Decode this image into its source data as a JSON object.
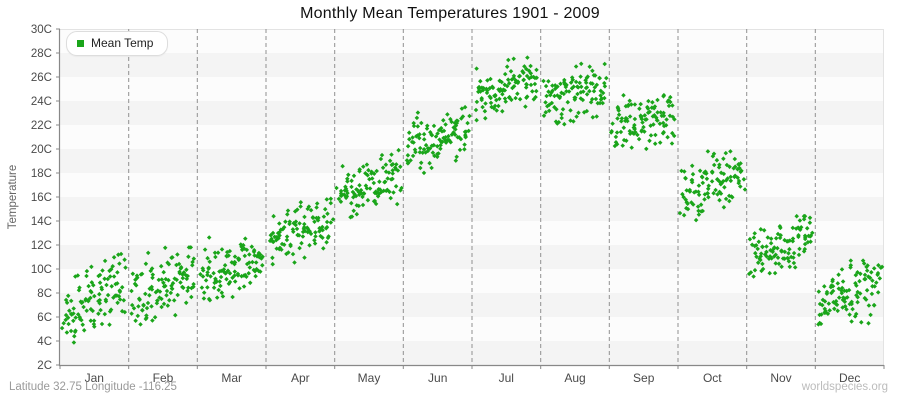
{
  "title": "Monthly Mean Temperatures 1901 - 2009",
  "legend": {
    "label": "Mean Temp"
  },
  "y_axis": {
    "label": "Temperature",
    "min": 2,
    "max": 30,
    "tick_step": 2,
    "tick_labels": [
      "2C",
      "4C",
      "6C",
      "8C",
      "10C",
      "12C",
      "14C",
      "16C",
      "18C",
      "20C",
      "22C",
      "24C",
      "26C",
      "28C",
      "30C"
    ]
  },
  "x_axis": {
    "months": [
      "Jan",
      "Feb",
      "Mar",
      "Apr",
      "May",
      "Jun",
      "Jul",
      "Aug",
      "Sep",
      "Oct",
      "Nov",
      "Dec"
    ]
  },
  "footer": {
    "left": "Latitude 32.75 Longitude -116.25",
    "right": "worldspecies.org"
  },
  "colors": {
    "point_green": "#1aa51a",
    "band_light": "#fcfcfc",
    "band_dark": "#f4f4f4",
    "gridline": "#909090",
    "axis_line": "#888888",
    "tick_mark": "#888888",
    "tick_label": "#4a4a4a",
    "month_label": "#4a4a4a"
  },
  "chart_data": {
    "type": "scatter",
    "title": "Monthly Mean Temperatures 1901 - 2009",
    "xlabel": "",
    "ylabel": "Temperature",
    "ylim": [
      2,
      30
    ],
    "y_tick_step": 2,
    "grid": "vertical-dashed-month-boundaries",
    "background_bands": "alternating 2C horizontal stripes",
    "legend_position": "top-left",
    "categories": [
      "Jan",
      "Feb",
      "Mar",
      "Apr",
      "May",
      "Jun",
      "Jul",
      "Aug",
      "Sep",
      "Oct",
      "Nov",
      "Dec"
    ],
    "series": [
      {
        "name": "Mean Temp",
        "marker": "diamond",
        "year_span": "1901 - 2009",
        "points_per_month": 109,
        "seed": 19012009,
        "monthly_stats": [
          {
            "month": "Jan",
            "mean": 7.5,
            "std": 1.35,
            "trend": 2.8,
            "min": 3.2,
            "max": 11.4
          },
          {
            "month": "Feb",
            "mean": 8.6,
            "std": 1.3,
            "trend": 2.0,
            "min": 5.2,
            "max": 11.8
          },
          {
            "month": "Mar",
            "mean": 10.4,
            "std": 1.25,
            "trend": 2.2,
            "min": 7.4,
            "max": 14.5
          },
          {
            "month": "Apr",
            "mean": 13.2,
            "std": 1.1,
            "trend": 1.8,
            "min": 10.4,
            "max": 16.2
          },
          {
            "month": "May",
            "mean": 16.8,
            "std": 1.15,
            "trend": 2.0,
            "min": 13.8,
            "max": 19.9
          },
          {
            "month": "Jun",
            "mean": 20.6,
            "std": 1.1,
            "trend": 1.6,
            "min": 17.7,
            "max": 23.6
          },
          {
            "month": "Jul",
            "mean": 25.0,
            "std": 1.0,
            "trend": 1.6,
            "min": 22.4,
            "max": 28.5
          },
          {
            "month": "Aug",
            "mean": 24.6,
            "std": 1.0,
            "trend": 1.4,
            "min": 21.8,
            "max": 27.1
          },
          {
            "month": "Sep",
            "mean": 22.2,
            "std": 1.1,
            "trend": 1.4,
            "min": 19.6,
            "max": 25.3
          },
          {
            "month": "Oct",
            "mean": 16.9,
            "std": 1.2,
            "trend": 1.5,
            "min": 13.9,
            "max": 19.8
          },
          {
            "month": "Nov",
            "mean": 11.8,
            "std": 1.1,
            "trend": 1.6,
            "min": 9.3,
            "max": 14.4
          },
          {
            "month": "Dec",
            "mean": 8.1,
            "std": 1.2,
            "trend": 1.8,
            "min": 4.6,
            "max": 11.0
          }
        ]
      }
    ]
  }
}
